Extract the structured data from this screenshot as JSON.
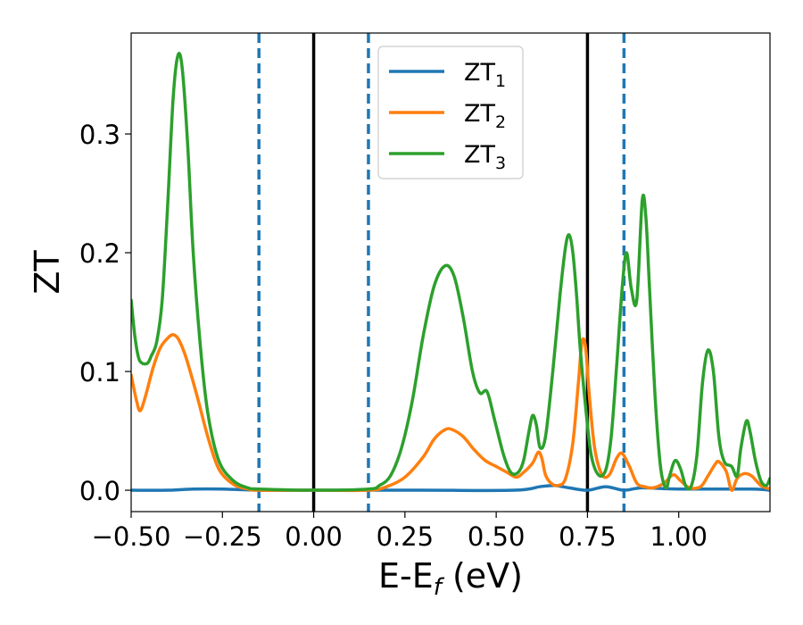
{
  "chart_data": {
    "type": "line",
    "title": "",
    "xlabel": "E-E",
    "xlabel_sub": "f",
    "xlabel_unit": " (eV)",
    "ylabel": "ZT",
    "xlim": [
      -0.5,
      1.25
    ],
    "ylim": [
      -0.018,
      0.385
    ],
    "grid": false,
    "legend_position": "top-center",
    "x_ticks": [
      -0.5,
      -0.25,
      0.0,
      0.25,
      0.5,
      0.75,
      1.0
    ],
    "x_tick_labels": [
      "−0.50",
      "−0.25",
      "0.00",
      "0.25",
      "0.50",
      "0.75",
      "1.00"
    ],
    "y_ticks": [
      0.0,
      0.1,
      0.2,
      0.3
    ],
    "y_tick_labels": [
      "0.0",
      "0.1",
      "0.2",
      "0.3"
    ],
    "vertical_lines": [
      {
        "x": 0.0,
        "style": "solid",
        "color": "#000000"
      },
      {
        "x": 0.75,
        "style": "solid",
        "color": "#000000"
      },
      {
        "x": -0.15,
        "style": "dashed",
        "color": "#1f77b4"
      },
      {
        "x": 0.15,
        "style": "dashed",
        "color": "#1f77b4"
      },
      {
        "x": 0.85,
        "style": "dashed",
        "color": "#1f77b4"
      }
    ],
    "series": [
      {
        "name": "ZT",
        "name_sub": "1",
        "color": "#1f77b4",
        "points": [
          [
            -0.5,
            0.0
          ],
          [
            -0.4,
            0.0
          ],
          [
            -0.33,
            0.001
          ],
          [
            -0.25,
            0.001
          ],
          [
            -0.15,
            0.0
          ],
          [
            0.0,
            0.0
          ],
          [
            0.3,
            0.0
          ],
          [
            0.55,
            0.0
          ],
          [
            0.62,
            0.003
          ],
          [
            0.66,
            0.004
          ],
          [
            0.7,
            0.002
          ],
          [
            0.75,
            0.0
          ],
          [
            0.8,
            0.003
          ],
          [
            0.85,
            0.0
          ],
          [
            0.9,
            0.002
          ],
          [
            1.0,
            0.001
          ],
          [
            1.2,
            0.001
          ],
          [
            1.25,
            0.0
          ]
        ]
      },
      {
        "name": "ZT",
        "name_sub": "2",
        "color": "#ff7f0e",
        "points": [
          [
            -0.5,
            0.097
          ],
          [
            -0.485,
            0.075
          ],
          [
            -0.475,
            0.067
          ],
          [
            -0.46,
            0.08
          ],
          [
            -0.44,
            0.103
          ],
          [
            -0.42,
            0.12
          ],
          [
            -0.4,
            0.128
          ],
          [
            -0.385,
            0.131
          ],
          [
            -0.37,
            0.127
          ],
          [
            -0.35,
            0.112
          ],
          [
            -0.32,
            0.08
          ],
          [
            -0.29,
            0.045
          ],
          [
            -0.26,
            0.018
          ],
          [
            -0.22,
            0.005
          ],
          [
            -0.18,
            0.001
          ],
          [
            -0.15,
            0.0
          ],
          [
            0.0,
            0.0
          ],
          [
            0.15,
            0.0
          ],
          [
            0.2,
            0.003
          ],
          [
            0.25,
            0.011
          ],
          [
            0.3,
            0.028
          ],
          [
            0.33,
            0.043
          ],
          [
            0.36,
            0.051
          ],
          [
            0.38,
            0.051
          ],
          [
            0.41,
            0.045
          ],
          [
            0.44,
            0.034
          ],
          [
            0.47,
            0.025
          ],
          [
            0.5,
            0.02
          ],
          [
            0.53,
            0.015
          ],
          [
            0.555,
            0.011
          ],
          [
            0.575,
            0.015
          ],
          [
            0.6,
            0.023
          ],
          [
            0.615,
            0.032
          ],
          [
            0.625,
            0.027
          ],
          [
            0.635,
            0.013
          ],
          [
            0.65,
            0.006
          ],
          [
            0.67,
            0.004
          ],
          [
            0.69,
            0.01
          ],
          [
            0.71,
            0.04
          ],
          [
            0.725,
            0.09
          ],
          [
            0.735,
            0.125
          ],
          [
            0.745,
            0.12
          ],
          [
            0.755,
            0.08
          ],
          [
            0.77,
            0.035
          ],
          [
            0.79,
            0.013
          ],
          [
            0.81,
            0.013
          ],
          [
            0.83,
            0.027
          ],
          [
            0.845,
            0.031
          ],
          [
            0.865,
            0.02
          ],
          [
            0.885,
            0.006
          ],
          [
            0.905,
            0.003
          ],
          [
            0.93,
            0.002
          ],
          [
            0.96,
            0.006
          ],
          [
            0.985,
            0.013
          ],
          [
            1.005,
            0.008
          ],
          [
            1.03,
            0.002
          ],
          [
            1.06,
            0.003
          ],
          [
            1.08,
            0.012
          ],
          [
            1.1,
            0.022
          ],
          [
            1.11,
            0.024
          ],
          [
            1.13,
            0.016
          ],
          [
            1.145,
            0.0
          ],
          [
            1.16,
            0.01
          ],
          [
            1.18,
            0.014
          ],
          [
            1.2,
            0.012
          ],
          [
            1.225,
            0.004
          ],
          [
            1.25,
            0.001
          ]
        ]
      },
      {
        "name": "ZT",
        "name_sub": "3",
        "color": "#2ca02c",
        "points": [
          [
            -0.5,
            0.16
          ],
          [
            -0.49,
            0.13
          ],
          [
            -0.48,
            0.112
          ],
          [
            -0.47,
            0.107
          ],
          [
            -0.455,
            0.107
          ],
          [
            -0.445,
            0.113
          ],
          [
            -0.43,
            0.125
          ],
          [
            -0.415,
            0.16
          ],
          [
            -0.4,
            0.24
          ],
          [
            -0.385,
            0.33
          ],
          [
            -0.372,
            0.366
          ],
          [
            -0.36,
            0.355
          ],
          [
            -0.345,
            0.29
          ],
          [
            -0.33,
            0.2
          ],
          [
            -0.31,
            0.12
          ],
          [
            -0.29,
            0.065
          ],
          [
            -0.26,
            0.025
          ],
          [
            -0.22,
            0.008
          ],
          [
            -0.18,
            0.002
          ],
          [
            -0.15,
            0.001
          ],
          [
            0.0,
            0.0
          ],
          [
            0.15,
            0.001
          ],
          [
            0.18,
            0.004
          ],
          [
            0.21,
            0.012
          ],
          [
            0.24,
            0.035
          ],
          [
            0.27,
            0.075
          ],
          [
            0.3,
            0.13
          ],
          [
            0.33,
            0.172
          ],
          [
            0.36,
            0.189
          ],
          [
            0.385,
            0.18
          ],
          [
            0.41,
            0.145
          ],
          [
            0.435,
            0.1
          ],
          [
            0.455,
            0.082
          ],
          [
            0.475,
            0.083
          ],
          [
            0.495,
            0.06
          ],
          [
            0.52,
            0.03
          ],
          [
            0.54,
            0.015
          ],
          [
            0.56,
            0.015
          ],
          [
            0.575,
            0.025
          ],
          [
            0.59,
            0.05
          ],
          [
            0.6,
            0.063
          ],
          [
            0.61,
            0.055
          ],
          [
            0.62,
            0.036
          ],
          [
            0.635,
            0.045
          ],
          [
            0.655,
            0.1
          ],
          [
            0.675,
            0.165
          ],
          [
            0.69,
            0.205
          ],
          [
            0.7,
            0.215
          ],
          [
            0.71,
            0.2
          ],
          [
            0.72,
            0.165
          ],
          [
            0.73,
            0.12
          ],
          [
            0.745,
            0.07
          ],
          [
            0.76,
            0.03
          ],
          [
            0.78,
            0.013
          ],
          [
            0.8,
            0.017
          ],
          [
            0.815,
            0.045
          ],
          [
            0.83,
            0.105
          ],
          [
            0.845,
            0.17
          ],
          [
            0.857,
            0.2
          ],
          [
            0.87,
            0.17
          ],
          [
            0.885,
            0.16
          ],
          [
            0.9,
            0.244
          ],
          [
            0.91,
            0.23
          ],
          [
            0.92,
            0.17
          ],
          [
            0.935,
            0.08
          ],
          [
            0.95,
            0.02
          ],
          [
            0.965,
            0.002
          ],
          [
            0.975,
            0.012
          ],
          [
            0.99,
            0.025
          ],
          [
            1.005,
            0.018
          ],
          [
            1.02,
            0.003
          ],
          [
            1.035,
            0.004
          ],
          [
            1.05,
            0.03
          ],
          [
            1.065,
            0.09
          ],
          [
            1.08,
            0.118
          ],
          [
            1.095,
            0.1
          ],
          [
            1.11,
            0.045
          ],
          [
            1.125,
            0.024
          ],
          [
            1.145,
            0.02
          ],
          [
            1.16,
            0.012
          ],
          [
            1.17,
            0.035
          ],
          [
            1.185,
            0.058
          ],
          [
            1.195,
            0.05
          ],
          [
            1.21,
            0.025
          ],
          [
            1.225,
            0.008
          ],
          [
            1.24,
            0.004
          ],
          [
            1.25,
            0.01
          ]
        ]
      }
    ]
  }
}
